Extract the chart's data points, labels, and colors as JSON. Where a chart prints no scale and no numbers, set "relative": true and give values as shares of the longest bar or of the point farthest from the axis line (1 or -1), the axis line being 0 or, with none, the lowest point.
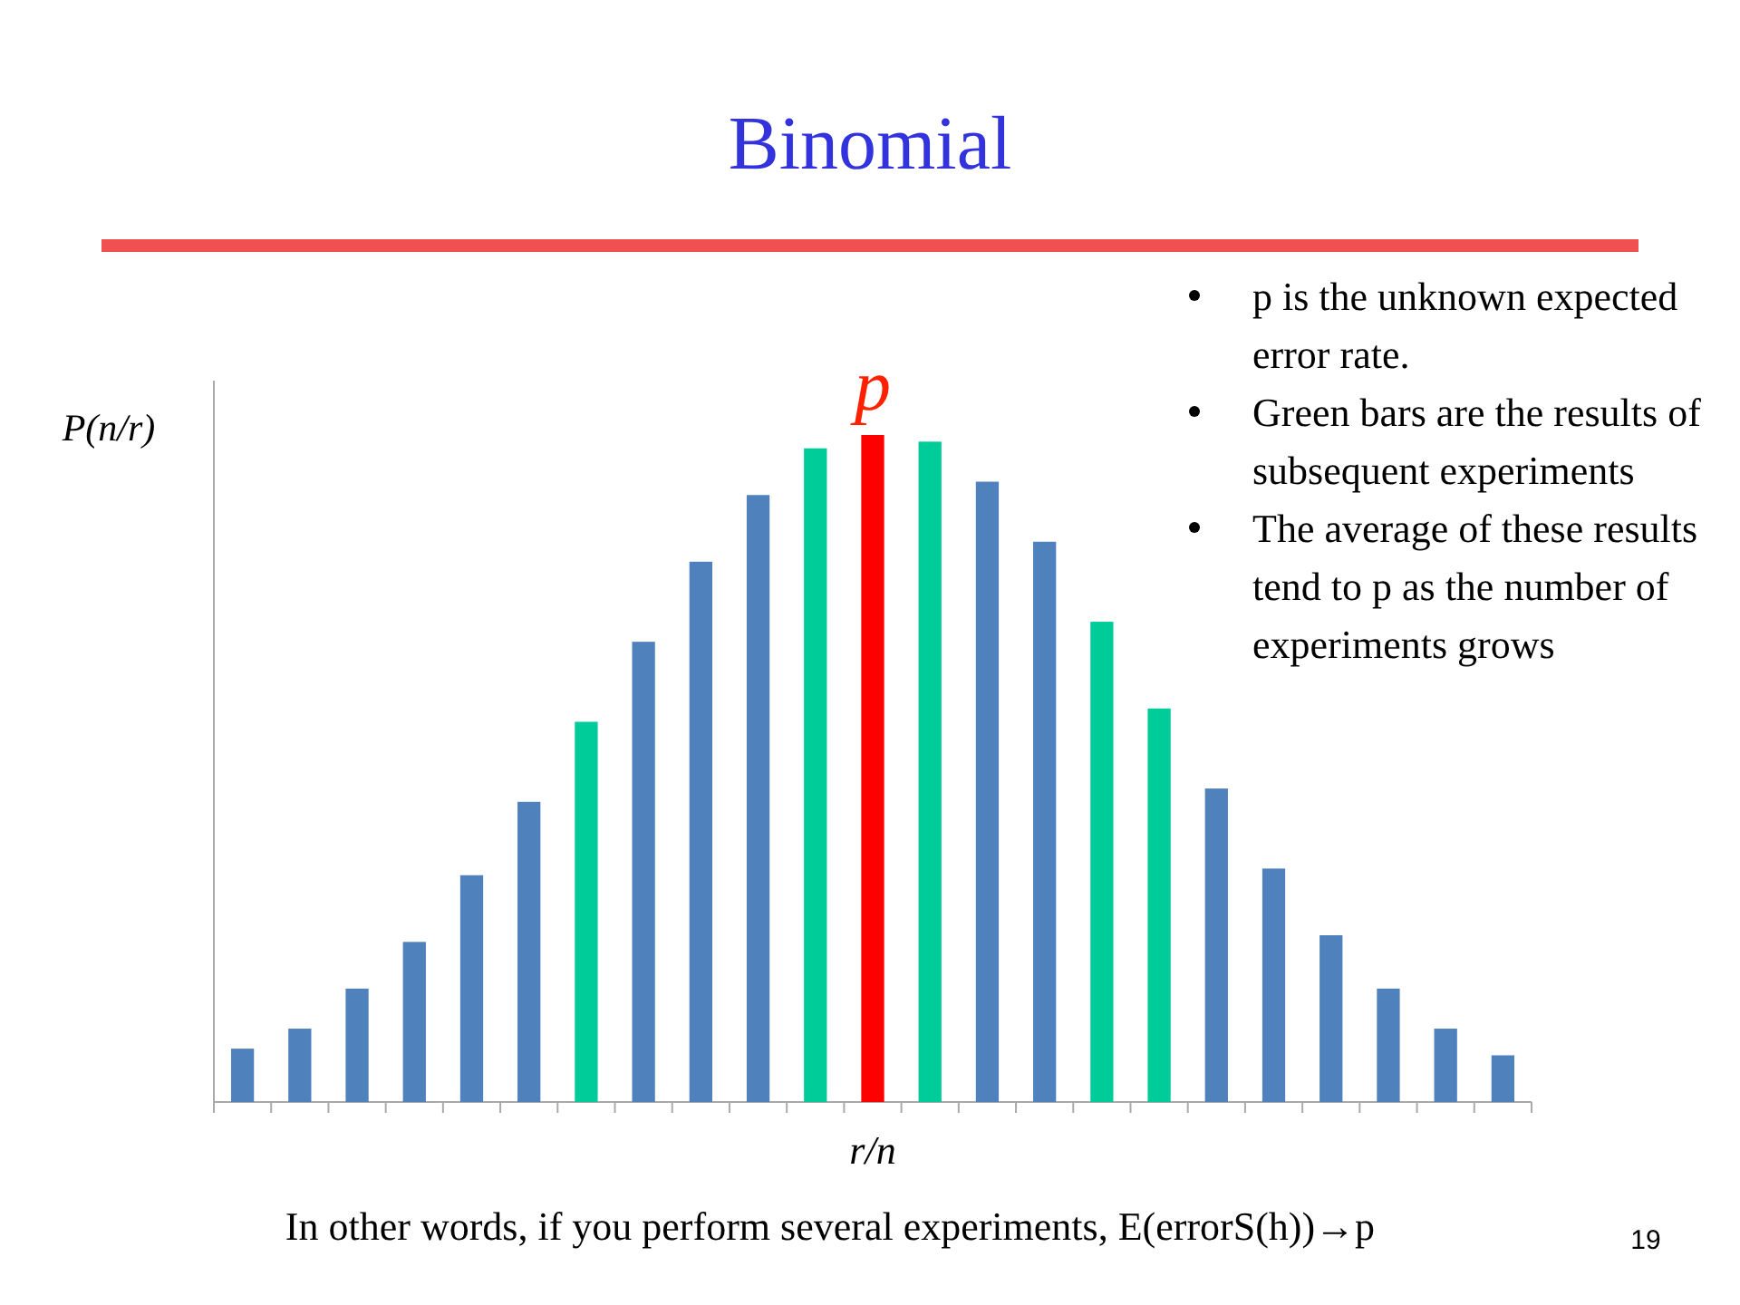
{
  "chart_data": {
    "type": "bar",
    "title": "Binomial",
    "xlabel": "r/n",
    "ylabel": "P(n/r)",
    "relative": true,
    "categories": [
      null,
      null,
      null,
      null,
      null,
      null,
      null,
      null,
      null,
      null,
      null,
      null,
      null,
      null,
      null,
      null,
      null,
      null,
      null,
      null,
      null,
      null,
      null
    ],
    "values": [
      0.08,
      0.11,
      0.17,
      0.24,
      0.34,
      0.45,
      0.57,
      0.69,
      0.81,
      0.91,
      0.98,
      1,
      0.99,
      0.93,
      0.84,
      0.72,
      0.59,
      0.47,
      0.35,
      0.25,
      0.17,
      0.11,
      0.07
    ],
    "colors": [
      "#4f81bd",
      "#4f81bd",
      "#4f81bd",
      "#4f81bd",
      "#4f81bd",
      "#4f81bd",
      "#00cc99",
      "#4f81bd",
      "#4f81bd",
      "#4f81bd",
      "#00cc99",
      "#ff0000",
      "#00cc99",
      "#4f81bd",
      "#4f81bd",
      "#00cc99",
      "#00cc99",
      "#4f81bd",
      "#4f81bd",
      "#4f81bd",
      "#4f81bd",
      "#4f81bd",
      "#4f81bd"
    ],
    "annotations": [
      "p",
      "p is the unknown expected error rate.",
      "Green bars are the results of subsequent experiments",
      "The average of these results tend to p as the number of experiments grows",
      "In other words, if you perform several experiments, E(errorS(h))→p",
      "19"
    ],
    "grid": false
  }
}
